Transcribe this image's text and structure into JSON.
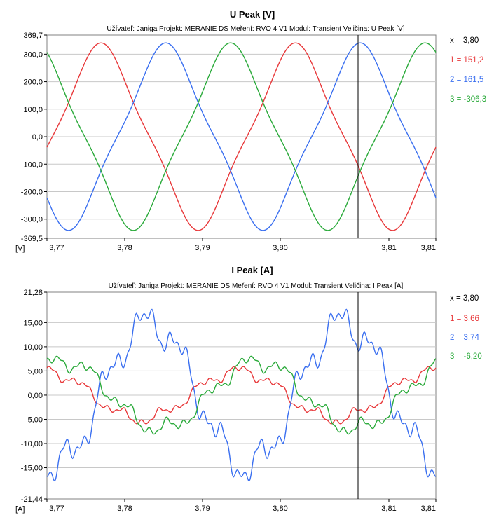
{
  "chart_data": [
    {
      "type": "line",
      "title": "U Peak [V]",
      "meta": "Užívateľ: Janiga   Projekt: MERANIE DS   Meření: RVO 4 V1   Modul: Transient   Veličina: U Peak [V]",
      "ylabel": "[V]",
      "xlim": [
        3.77,
        3.81
      ],
      "ylim": [
        -369.5,
        369.7
      ],
      "y_ticks": [
        "369,7",
        "300,0",
        "200,0",
        "100,0",
        "0,0",
        "-100,0",
        "-200,0",
        "-300,0",
        "-369,5"
      ],
      "y_tick_values": [
        369.7,
        300,
        200,
        100,
        0,
        -100,
        -200,
        -300,
        -369.5
      ],
      "x_ticks": [
        "3,77",
        "3,78",
        "3,79",
        "3,80",
        "3,81",
        "3,81"
      ],
      "x_tick_values": [
        3.77,
        3.78,
        3.79,
        3.8,
        3.81,
        3.81
      ],
      "grid": true,
      "cursor_x": 3.802,
      "legend": {
        "placement": "right",
        "cursor_label": "x = 3,80",
        "entries": [
          "1 = 151,2",
          "2 = 161,5",
          "3 = -306,3"
        ]
      },
      "series": [
        {
          "color": "#e8383a",
          "amplitude": 310,
          "phase_deg": -10
        },
        {
          "color": "#3a6ff0",
          "amplitude": 310,
          "phase_deg": -130
        },
        {
          "color": "#2aaa3a",
          "amplitude": 310,
          "phase_deg": 110
        }
      ],
      "period": 0.02
    },
    {
      "type": "line",
      "title": "I Peak [A]",
      "meta": "Užívateľ: Janiga   Projekt: MERANIE DS   Meření: RVO 4 V1   Modul: Transient   Veličina: I Peak [A]",
      "ylabel": "[A]",
      "xlim": [
        3.77,
        3.81
      ],
      "ylim": [
        -21.44,
        21.28
      ],
      "y_ticks": [
        "21,28",
        "15,00",
        "10,00",
        "5,00",
        "0,00",
        "-5,00",
        "-10,00",
        "-15,00",
        "-21,44"
      ],
      "y_tick_values": [
        21.28,
        15,
        10,
        5,
        0,
        -5,
        -10,
        -15,
        -21.44
      ],
      "x_ticks": [
        "3,77",
        "3,78",
        "3,79",
        "3,80",
        "3,81",
        "3,81"
      ],
      "x_tick_values": [
        3.77,
        3.78,
        3.79,
        3.8,
        3.81,
        3.81
      ],
      "grid": true,
      "cursor_x": 3.802,
      "legend": {
        "placement": "right",
        "cursor_label": "x = 3,80",
        "entries": [
          "1 = 3,66",
          "2 = 3,74",
          "3 = -6,20"
        ]
      },
      "series": [
        {
          "color": "#e8383a",
          "amplitude": 5,
          "phase_deg": 95
        },
        {
          "color": "#3a6ff0",
          "amplitude": 15,
          "phase_deg": -100
        },
        {
          "color": "#2aaa3a",
          "amplitude": 7,
          "phase_deg": 60
        }
      ],
      "period": 0.02
    }
  ]
}
